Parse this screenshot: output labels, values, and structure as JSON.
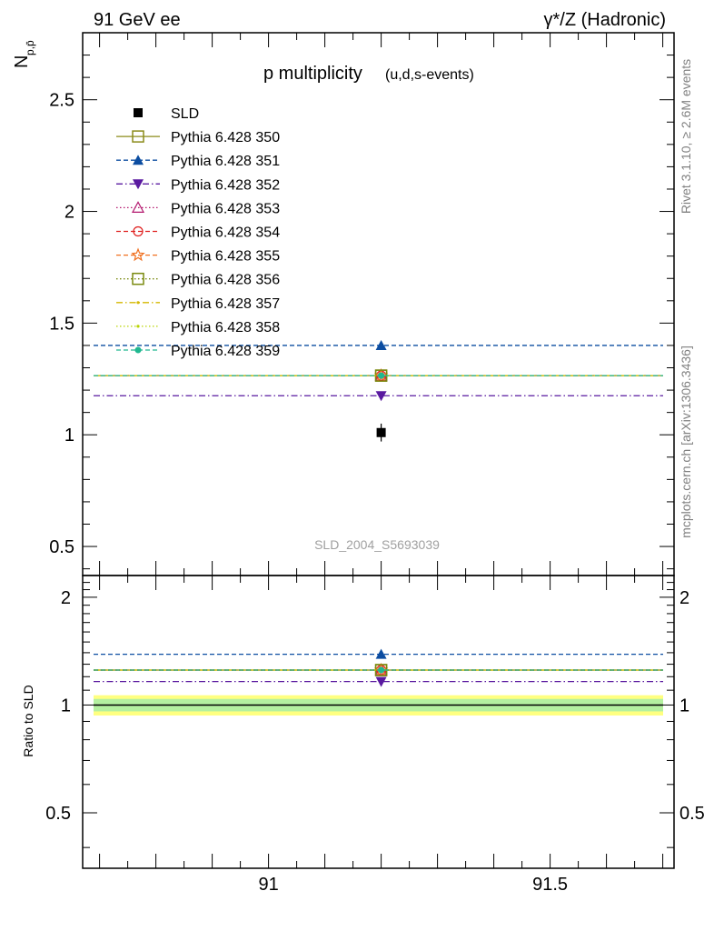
{
  "header": {
    "left": "91 GeV ee",
    "right": "γ*/Z (Hadronic)"
  },
  "side": {
    "rivet": "Rivet 3.1.10, ≥ 2.6M events",
    "mcplots": "mcplots.cern.ch [arXiv:1306.3436]"
  },
  "chart_data": {
    "type": "scatter",
    "title": "p multiplicity",
    "subtitle": "(u,d,s-events)",
    "ylabel_main": "N",
    "ylabel_sub": "p,p̄",
    "ylabel_ratio": "Ratio to SLD",
    "watermark": "SLD_2004_S5693039",
    "xlim": [
      90.67,
      91.72
    ],
    "x_ticks": [
      "91",
      "91.5"
    ],
    "x_tick_values": [
      91,
      91.5
    ],
    "main_ylim": [
      0.37,
      2.8
    ],
    "main_y_ticks": [
      "0.5",
      "1",
      "1.5",
      "2",
      "2.5"
    ],
    "main_y_tick_values": [
      0.5,
      1,
      1.5,
      2,
      2.5
    ],
    "ratio_ylim": [
      0.35,
      2.3
    ],
    "ratio_y_ticks": [
      "0.5",
      "1",
      "2"
    ],
    "ratio_y_tick_values": [
      0.5,
      1,
      2
    ],
    "grid": false,
    "legend_position": "top-left",
    "x": 91.2,
    "data": {
      "name": "SLD",
      "value": 1.01,
      "error": 0.04
    },
    "series": [
      {
        "name": "Pythia 6.428 350",
        "value": 1.265,
        "ratio": 1.252,
        "color": "#8b8b1a",
        "marker": "square-open",
        "dash": "solid"
      },
      {
        "name": "Pythia 6.428 351",
        "value": 1.4,
        "ratio": 1.386,
        "color": "#0c4da1",
        "marker": "triangle-up",
        "dash": "dashed"
      },
      {
        "name": "Pythia 6.428 352",
        "value": 1.175,
        "ratio": 1.163,
        "color": "#5a1aa0",
        "marker": "triangle-down",
        "dash": "dashdot"
      },
      {
        "name": "Pythia 6.428 353",
        "value": 1.265,
        "ratio": 1.252,
        "color": "#b3176e",
        "marker": "triangle-open",
        "dash": "dotted"
      },
      {
        "name": "Pythia 6.428 354",
        "value": 1.265,
        "ratio": 1.252,
        "color": "#e0201f",
        "marker": "circle-open",
        "dash": "dashed"
      },
      {
        "name": "Pythia 6.428 355",
        "value": 1.265,
        "ratio": 1.252,
        "color": "#f07020",
        "marker": "star-open",
        "dash": "dashed"
      },
      {
        "name": "Pythia 6.428 356",
        "value": 1.265,
        "ratio": 1.252,
        "color": "#7a8a10",
        "marker": "square-open",
        "dash": "dotted"
      },
      {
        "name": "Pythia 6.428 357",
        "value": 1.265,
        "ratio": 1.252,
        "color": "#d4b800",
        "marker": "dot",
        "dash": "dashdot"
      },
      {
        "name": "Pythia 6.428 358",
        "value": 1.265,
        "ratio": 1.252,
        "color": "#b8d400",
        "marker": "dot",
        "dash": "dotted"
      },
      {
        "name": "Pythia 6.428 359",
        "value": 1.265,
        "ratio": 1.252,
        "color": "#20b890",
        "marker": "circle-filled",
        "dash": "dashed"
      }
    ],
    "ratio_band": {
      "inner": 0.04,
      "outer": 0.065
    }
  }
}
